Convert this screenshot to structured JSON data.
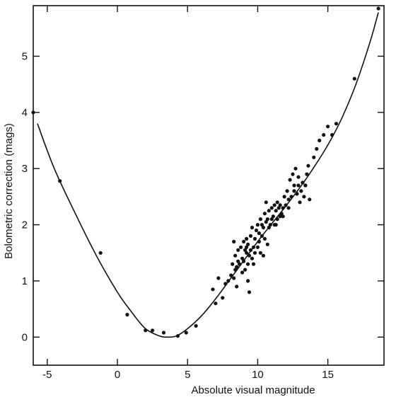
{
  "chart_data": {
    "type": "scatter",
    "title": "",
    "xlabel": "Absolute visual magnitude",
    "ylabel": "Bolometric correction (mags)",
    "xlim": [
      -6,
      19
    ],
    "ylim": [
      -0.5,
      5.9
    ],
    "x_ticks": [
      {
        "value": -5,
        "label": "-5"
      },
      {
        "value": 0,
        "label": "0"
      },
      {
        "value": 5,
        "label": "5"
      },
      {
        "value": 10,
        "label": "10"
      },
      {
        "value": 15,
        "label": "15"
      }
    ],
    "y_ticks": [
      {
        "value": 0,
        "label": "0"
      },
      {
        "value": 1,
        "label": "1"
      },
      {
        "value": 2,
        "label": "2"
      },
      {
        "value": 3,
        "label": "3"
      },
      {
        "value": 4,
        "label": "4"
      },
      {
        "value": 5,
        "label": "5"
      }
    ],
    "grid": false,
    "series": [
      {
        "kind": "points",
        "x": [
          -6.0,
          -4.1,
          -1.2,
          0.7,
          2.0,
          2.5,
          3.3,
          4.3,
          4.9,
          5.6,
          6.8,
          7.0,
          7.2,
          7.5,
          7.7,
          7.9,
          8.1,
          8.2,
          8.3,
          8.3,
          8.4,
          8.4,
          8.5,
          8.5,
          8.6,
          8.7,
          8.8,
          8.9,
          9.0,
          9.0,
          9.1,
          9.1,
          9.2,
          9.2,
          9.3,
          9.3,
          9.4,
          9.4,
          9.5,
          9.5,
          9.6,
          9.6,
          9.7,
          9.8,
          9.8,
          9.9,
          10.0,
          10.0,
          10.1,
          10.1,
          10.2,
          10.3,
          10.3,
          10.4,
          10.5,
          10.5,
          10.6,
          10.6,
          10.7,
          10.8,
          10.8,
          10.9,
          11.0,
          11.0,
          11.1,
          11.2,
          11.2,
          11.3,
          11.4,
          11.4,
          11.5,
          11.6,
          11.7,
          11.8,
          11.9,
          12.0,
          12.1,
          12.2,
          12.3,
          12.4,
          12.5,
          12.6,
          12.7,
          12.8,
          12.9,
          13.0,
          13.1,
          13.2,
          13.3,
          13.4,
          13.5,
          13.6,
          13.7,
          14.0,
          14.2,
          14.4,
          14.7,
          15.0,
          15.3,
          15.6,
          16.9,
          18.6,
          8.6,
          9.2,
          9.7,
          10.2,
          10.7,
          11.3,
          11.8,
          12.2,
          12.6,
          13.4,
          9.3,
          8.9,
          10.4,
          11.6,
          12.9
        ],
        "y": [
          4.0,
          2.78,
          1.5,
          0.4,
          0.12,
          0.12,
          0.08,
          0.02,
          0.08,
          0.2,
          0.85,
          0.6,
          1.05,
          0.7,
          0.95,
          1.0,
          1.1,
          1.3,
          1.7,
          1.05,
          1.2,
          1.45,
          0.9,
          1.25,
          1.55,
          1.3,
          1.6,
          1.4,
          1.7,
          1.35,
          1.55,
          1.2,
          1.75,
          1.5,
          1.3,
          1.65,
          1.45,
          0.8,
          1.8,
          1.55,
          1.4,
          1.95,
          1.6,
          1.75,
          1.5,
          1.9,
          2.0,
          1.6,
          1.85,
          1.7,
          2.1,
          1.8,
          2.0,
          1.95,
          2.2,
          1.75,
          2.05,
          2.4,
          2.1,
          1.95,
          2.25,
          2.0,
          2.3,
          2.1,
          2.15,
          2.35,
          2.0,
          2.25,
          2.4,
          2.1,
          2.3,
          2.35,
          2.2,
          2.3,
          2.5,
          2.35,
          2.6,
          2.45,
          2.8,
          2.5,
          2.9,
          2.7,
          3.0,
          2.55,
          2.85,
          2.4,
          2.6,
          2.75,
          2.5,
          2.7,
          2.9,
          3.05,
          2.45,
          3.2,
          3.35,
          3.5,
          3.6,
          3.75,
          3.6,
          3.8,
          4.6,
          5.85,
          1.35,
          1.6,
          1.3,
          1.5,
          1.65,
          2.0,
          2.15,
          2.3,
          2.6,
          2.7,
          1.0,
          1.15,
          1.45,
          2.15,
          2.7
        ]
      },
      {
        "kind": "curve",
        "x": [
          -5.7,
          -4.5,
          -3.0,
          -1.5,
          0.0,
          1.0,
          2.0,
          3.0,
          3.6,
          4.2,
          5.0,
          6.0,
          7.0,
          8.0,
          9.0,
          10.0,
          11.0,
          12.0,
          13.0,
          14.0,
          15.0,
          16.0,
          17.0,
          18.0,
          18.6
        ],
        "y": [
          3.8,
          3.0,
          2.2,
          1.45,
          0.8,
          0.45,
          0.15,
          0.02,
          0.0,
          0.02,
          0.15,
          0.38,
          0.68,
          1.02,
          1.36,
          1.7,
          2.02,
          2.33,
          2.66,
          3.02,
          3.42,
          3.9,
          4.5,
          5.25,
          5.78
        ]
      }
    ]
  }
}
